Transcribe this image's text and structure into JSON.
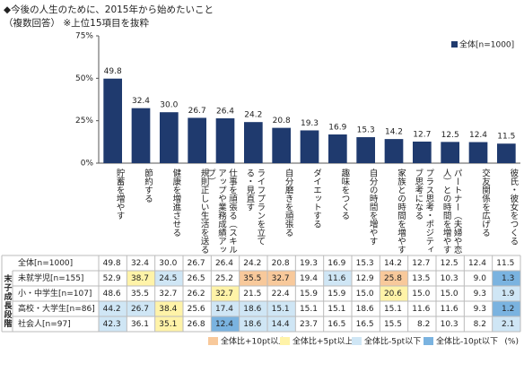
{
  "chart_data": {
    "type": "bar",
    "title": "◆今後の人生のために、2015年から始めたいこと",
    "subtitle": "（複数回答） ※上位15項目を抜粋",
    "categories": [
      "貯蓄を増やす",
      "節約する",
      "健康を増進させる",
      "規則正しい生活を送る",
      "仕事を頑張る（スキルアップや業務成績アップ）",
      "ライフプランを立てる・見直す",
      "自分磨きを頑張る",
      "ダイエットする",
      "趣味をつくる",
      "自分の時間を増やす",
      "家族との時間を増やす",
      "プラス思考・ポジティブ思考になる",
      "パートナー（夫婦や恋人）との時間を増やす",
      "交友関係を広げる",
      "彼氏・彼女をつくる"
    ],
    "series": [
      {
        "name": "全体[n=1000]",
        "color": "#1f3a6e",
        "values": [
          49.8,
          32.4,
          30.0,
          26.7,
          26.4,
          24.2,
          20.8,
          19.3,
          16.9,
          15.3,
          14.2,
          12.7,
          12.5,
          12.4,
          11.5
        ],
        "value_labels": [
          "49.8",
          "32.4",
          "30.0",
          "26.7",
          "26.4",
          "24.2",
          "20.8",
          "19.3",
          "16.9",
          "15.3",
          "14.2",
          "12.7",
          "12.5",
          "12.4",
          "11.5"
        ]
      }
    ],
    "ylim": [
      0,
      75
    ],
    "yticks": [
      {
        "value": 0,
        "label": "0%"
      },
      {
        "value": 25,
        "label": "25%"
      },
      {
        "value": 50,
        "label": "50%"
      },
      {
        "value": 75,
        "label": "75%"
      }
    ],
    "legend": "top-right"
  },
  "table": {
    "group_label": "末子成長段階",
    "rows": [
      {
        "label": "未就学児[n=155]",
        "values": [
          "52.9",
          "38.7",
          "24.5",
          "26.5",
          "25.2",
          "35.5",
          "32.7",
          "19.4",
          "11.6",
          "12.9",
          "25.8",
          "13.5",
          "10.3",
          "9.0",
          "1.3"
        ],
        "cell_colors": [
          null,
          "#fff3a8",
          "#cfe6f5",
          null,
          null,
          "#f8c99b",
          "#f8c99b",
          null,
          "#cfe6f5",
          null,
          "#f8c99b",
          null,
          null,
          null,
          "#7ab3e0"
        ]
      },
      {
        "label": "小・中学生[n=107]",
        "values": [
          "48.6",
          "35.5",
          "32.7",
          "26.2",
          "32.7",
          "21.5",
          "22.4",
          "15.9",
          "15.9",
          "15.0",
          "20.6",
          "15.0",
          "15.0",
          "9.3",
          "1.9"
        ],
        "cell_colors": [
          null,
          null,
          null,
          null,
          "#fff3a8",
          null,
          null,
          null,
          null,
          null,
          "#fff3a8",
          null,
          null,
          null,
          "#cfe6f5"
        ]
      },
      {
        "label": "高校・大学生[n=86]",
        "values": [
          "44.2",
          "26.7",
          "38.4",
          "25.6",
          "17.4",
          "18.6",
          "15.1",
          "15.1",
          "15.1",
          "18.6",
          "15.1",
          "11.6",
          "11.6",
          "9.3",
          "1.2"
        ],
        "cell_colors": [
          "#cfe6f5",
          "#cfe6f5",
          "#fff3a8",
          null,
          "#cfe6f5",
          "#cfe6f5",
          "#cfe6f5",
          null,
          null,
          null,
          null,
          null,
          null,
          null,
          "#7ab3e0"
        ]
      },
      {
        "label": "社会人[n=97]",
        "values": [
          "42.3",
          "36.1",
          "35.1",
          "26.8",
          "12.4",
          "18.6",
          "14.4",
          "23.7",
          "16.5",
          "16.5",
          "15.5",
          "8.2",
          "10.3",
          "8.2",
          "2.1"
        ],
        "cell_colors": [
          "#cfe6f5",
          null,
          "#fff3a8",
          null,
          "#7ab3e0",
          "#cfe6f5",
          "#cfe6f5",
          null,
          null,
          null,
          null,
          null,
          null,
          null,
          "#cfe6f5"
        ]
      }
    ],
    "legend": [
      {
        "label": "全体比+10pt以上",
        "color": "#f8c99b"
      },
      {
        "label": "全体比+5pt以上",
        "color": "#fff3a8"
      },
      {
        "label": "全体比-5pt以下",
        "color": "#cfe6f5"
      },
      {
        "label": "全体比-10pt以下",
        "color": "#7ab3e0"
      }
    ],
    "unit": "(%)"
  }
}
